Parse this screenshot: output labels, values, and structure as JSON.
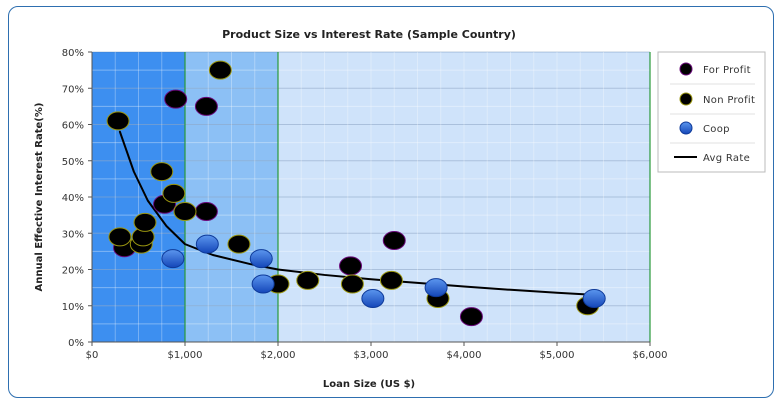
{
  "chart_data": {
    "type": "scatter",
    "title": "Product Size vs Interest Rate (Sample Country)",
    "xlabel": "Loan Size (US $)",
    "ylabel": "Annual Effective Interest Rate(%)",
    "xlim": [
      0,
      6000
    ],
    "ylim": [
      0,
      80
    ],
    "x_ticks": [
      0,
      1000,
      2000,
      3000,
      4000,
      5000,
      6000
    ],
    "x_tick_labels": [
      "$0",
      "$1,000",
      "$2,000",
      "$3,000",
      "$4,000",
      "$5,000",
      "$6,000"
    ],
    "y_ticks": [
      0,
      10,
      20,
      30,
      40,
      50,
      60,
      70,
      80
    ],
    "y_tick_labels": [
      "0%",
      "10%",
      "20%",
      "30%",
      "40%",
      "50%",
      "60%",
      "70%",
      "80%"
    ],
    "bands": [
      {
        "from": 0,
        "to": 1000,
        "color": "#3d8ff0"
      },
      {
        "from": 1000,
        "to": 2000,
        "color": "#8cc0f5"
      },
      {
        "from": 2000,
        "to": 6000,
        "color": "#cfe3fa"
      }
    ],
    "grid": true,
    "legend_position": "right",
    "series": [
      {
        "name": "For Profit",
        "color": "#a012b8",
        "points": [
          [
            350,
            26
          ],
          [
            780,
            38
          ],
          [
            900,
            67
          ],
          [
            1230,
            65
          ],
          [
            1230,
            36
          ],
          [
            2780,
            21
          ],
          [
            3250,
            28
          ],
          [
            4080,
            7
          ]
        ]
      },
      {
        "name": "Non Profit",
        "color": "#e6e32a",
        "points": [
          [
            280,
            61
          ],
          [
            300,
            29
          ],
          [
            530,
            27
          ],
          [
            550,
            29
          ],
          [
            570,
            33
          ],
          [
            750,
            47
          ],
          [
            880,
            41
          ],
          [
            1000,
            36
          ],
          [
            1380,
            75
          ],
          [
            1580,
            27
          ],
          [
            2000,
            16
          ],
          [
            2320,
            17
          ],
          [
            2800,
            16
          ],
          [
            3220,
            17
          ],
          [
            3720,
            12
          ],
          [
            5330,
            10
          ]
        ]
      },
      {
        "name": "Coop",
        "color": "#1d5fd6",
        "points": [
          [
            870,
            23
          ],
          [
            1240,
            27
          ],
          [
            1820,
            23
          ],
          [
            1840,
            16
          ],
          [
            3020,
            12
          ],
          [
            3700,
            15
          ],
          [
            5400,
            12
          ]
        ]
      },
      {
        "name": "Avg Rate",
        "type": "line",
        "color": "#000000",
        "points": [
          [
            300,
            58
          ],
          [
            450,
            47
          ],
          [
            600,
            39
          ],
          [
            800,
            32
          ],
          [
            1000,
            27
          ],
          [
            1300,
            24
          ],
          [
            1700,
            21.5
          ],
          [
            2000,
            20
          ],
          [
            2500,
            18.5
          ],
          [
            3000,
            17.3
          ],
          [
            3500,
            16.3
          ],
          [
            4000,
            15.3
          ],
          [
            4500,
            14.4
          ],
          [
            5000,
            13.6
          ],
          [
            5400,
            13
          ]
        ]
      }
    ]
  }
}
